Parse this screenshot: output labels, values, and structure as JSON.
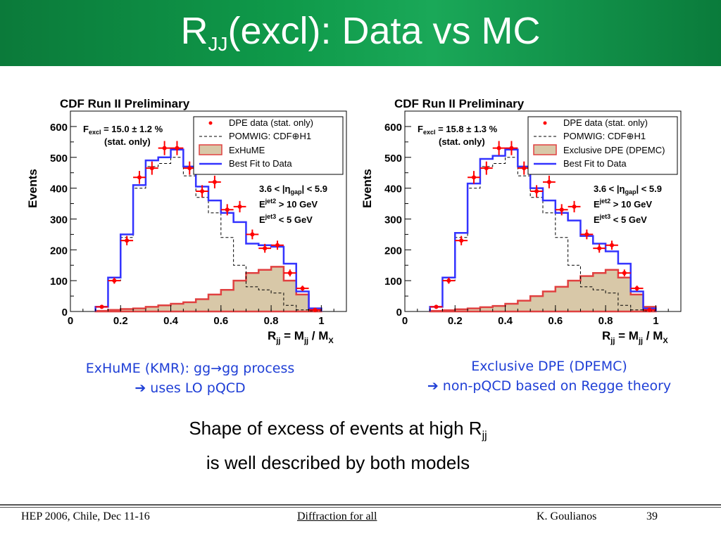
{
  "title": {
    "main": "R",
    "sub": "JJ",
    "rest": "(excl): Data vs MC"
  },
  "chart_data": [
    {
      "type": "histogram",
      "title": "CDF Run II Preliminary",
      "ylabel": "Events",
      "xlabel_main": "R",
      "xlabel_sub": "jj",
      "xlabel_eq": " = M",
      "xlabel_sub2": "jj",
      "xlabel_div": " / M",
      "xlabel_sub3": "X",
      "xlim": [
        0,
        1.1
      ],
      "ylim": [
        0,
        650
      ],
      "xticks": [
        0,
        0.2,
        0.4,
        0.6,
        0.8,
        1
      ],
      "yticks": [
        0,
        100,
        200,
        300,
        400,
        500,
        600
      ],
      "fexcl": {
        "prefix": "F",
        "sub": "excl",
        "text": " = 15.0 ± 1.2 %",
        "line2": "(stat. only)"
      },
      "cuts": {
        "line1": "3.6 < |η",
        "line1_sub": "gap",
        "line1_end": "| < 5.9",
        "line2": "E",
        "line2_sup": "jet2",
        "line2_sub": "T",
        "line2_end": " > 10 GeV",
        "line3": "E",
        "line3_sup": "jet3",
        "line3_sub": "T",
        "line3_end": " < 5 GeV"
      },
      "legend": [
        "DPE data (stat. only)",
        "POMWIG: CDF⊕H1",
        "ExHuME",
        "Best Fit to Data"
      ],
      "bin_edges": [
        0.1,
        0.15,
        0.2,
        0.25,
        0.3,
        0.35,
        0.4,
        0.45,
        0.5,
        0.55,
        0.6,
        0.65,
        0.7,
        0.75,
        0.8,
        0.85,
        0.9,
        0.95,
        1.0
      ],
      "data": [
        15,
        100,
        230,
        435,
        465,
        530,
        530,
        465,
        390,
        420,
        330,
        340,
        250,
        205,
        215,
        125,
        75,
        5
      ],
      "data_x": [
        0.125,
        0.175,
        0.225,
        0.275,
        0.325,
        0.375,
        0.425,
        0.475,
        0.525,
        0.575,
        0.625,
        0.675,
        0.725,
        0.775,
        0.825,
        0.875,
        0.925,
        0.975
      ],
      "best_fit": [
        15,
        110,
        250,
        410,
        490,
        500,
        525,
        470,
        405,
        360,
        320,
        290,
        220,
        215,
        210,
        155,
        65,
        10
      ],
      "pomwig": [
        15,
        100,
        240,
        400,
        470,
        480,
        500,
        440,
        370,
        320,
        240,
        150,
        80,
        70,
        60,
        20,
        5,
        2
      ],
      "model": [
        2,
        5,
        8,
        10,
        15,
        20,
        25,
        30,
        40,
        55,
        70,
        100,
        125,
        135,
        145,
        100,
        55,
        10
      ]
    },
    {
      "type": "histogram",
      "title": "CDF Run II Preliminary",
      "ylabel": "Events",
      "xlabel_main": "R",
      "xlabel_sub": "jj",
      "xlabel_eq": " = M",
      "xlabel_sub2": "jj",
      "xlabel_div": " / M",
      "xlabel_sub3": "X",
      "xlim": [
        0,
        1.1
      ],
      "ylim": [
        0,
        650
      ],
      "xticks": [
        0,
        0.2,
        0.4,
        0.6,
        0.8,
        1
      ],
      "yticks": [
        0,
        100,
        200,
        300,
        400,
        500,
        600
      ],
      "fexcl": {
        "prefix": "F",
        "sub": "excl",
        "text": " = 15.8 ± 1.3 %",
        "line2": "(stat. only)"
      },
      "cuts": {
        "line1": "3.6 < |η",
        "line1_sub": "gap",
        "line1_end": "| < 5.9",
        "line2": "E",
        "line2_sup": "jet2",
        "line2_sub": "T",
        "line2_end": " > 10 GeV",
        "line3": "E",
        "line3_sup": "jet3",
        "line3_sub": "T",
        "line3_end": " < 5 GeV"
      },
      "legend": [
        "DPE data (stat. only)",
        "POMWIG: CDF⊕H1",
        "Exclusive DPE (DPEMC)",
        "Best Fit to Data"
      ],
      "bin_edges": [
        0.1,
        0.15,
        0.2,
        0.25,
        0.3,
        0.35,
        0.4,
        0.45,
        0.5,
        0.55,
        0.6,
        0.65,
        0.7,
        0.75,
        0.8,
        0.85,
        0.9,
        0.95,
        1.0
      ],
      "data": [
        15,
        100,
        230,
        435,
        465,
        530,
        530,
        465,
        390,
        420,
        330,
        340,
        250,
        205,
        215,
        125,
        75,
        5
      ],
      "data_x": [
        0.125,
        0.175,
        0.225,
        0.275,
        0.325,
        0.375,
        0.425,
        0.475,
        0.525,
        0.575,
        0.625,
        0.675,
        0.725,
        0.775,
        0.825,
        0.875,
        0.925,
        0.975
      ],
      "best_fit": [
        15,
        110,
        255,
        415,
        495,
        505,
        525,
        470,
        400,
        360,
        320,
        295,
        245,
        220,
        195,
        155,
        65,
        10
      ],
      "pomwig": [
        15,
        100,
        240,
        400,
        470,
        480,
        500,
        440,
        370,
        320,
        240,
        150,
        80,
        70,
        60,
        20,
        5,
        2
      ],
      "model": [
        2,
        4,
        7,
        10,
        14,
        18,
        25,
        35,
        50,
        65,
        80,
        100,
        115,
        125,
        135,
        110,
        55,
        15
      ]
    }
  ],
  "captions": {
    "left_line1": "ExHuME (KMR): gg→gg process",
    "left_line2": "➔ uses LO pQCD",
    "right_line1": "Exclusive DPE (DPEMC)",
    "right_line2": "➔ non-pQCD based on Regge theory"
  },
  "summary": {
    "line1_main": "Shape of excess of events at high R",
    "line1_sub": "jj",
    "line2": "is well described by both models"
  },
  "footer": {
    "left": "HEP 2006, Chile, Dec 11-16",
    "center": "Diffraction for all",
    "author": "K. Goulianos",
    "page": "39"
  },
  "colors": {
    "title_bg": "#0f9a4a",
    "data": "#ff0000",
    "fit": "#3333ff",
    "model_fill": "#d8c8a8",
    "model_edge": "#e04040",
    "caption": "#1f3fd6"
  }
}
